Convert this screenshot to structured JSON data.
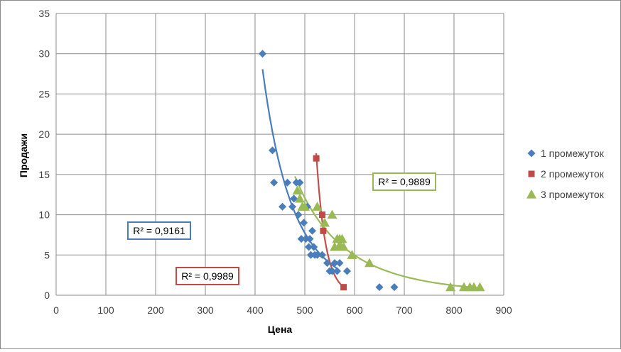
{
  "chart_data": {
    "type": "scatter",
    "title": "",
    "xlabel": "Цена",
    "ylabel": "Продажи",
    "xlim": [
      0,
      900
    ],
    "ylim": [
      0,
      35
    ],
    "xticks": [
      "0",
      "100",
      "200",
      "300",
      "400",
      "500",
      "600",
      "700",
      "800",
      "900"
    ],
    "yticks": [
      "0",
      "5",
      "10",
      "15",
      "20",
      "25",
      "30",
      "35"
    ],
    "grid": true,
    "legend_position": "right",
    "series": [
      {
        "name": "1 промежуток",
        "marker": "diamond",
        "color": "#4a7ebb",
        "trend_color": "#4a7ebb",
        "trend_range": [
          415,
          565
        ],
        "r2_label": "R² = 0,9161",
        "points": [
          [
            415,
            30
          ],
          [
            435,
            18
          ],
          [
            438,
            14
          ],
          [
            455,
            11
          ],
          [
            465,
            14
          ],
          [
            475,
            11
          ],
          [
            478,
            12
          ],
          [
            483,
            14
          ],
          [
            487,
            10
          ],
          [
            490,
            14
          ],
          [
            493,
            7
          ],
          [
            498,
            9
          ],
          [
            502,
            7
          ],
          [
            505,
            11
          ],
          [
            508,
            6
          ],
          [
            510,
            7
          ],
          [
            512,
            5
          ],
          [
            515,
            8
          ],
          [
            518,
            6
          ],
          [
            520,
            5
          ],
          [
            525,
            5
          ],
          [
            535,
            5
          ],
          [
            545,
            4
          ],
          [
            550,
            3
          ],
          [
            555,
            3
          ],
          [
            560,
            4
          ],
          [
            565,
            3
          ],
          [
            570,
            4
          ],
          [
            585,
            3
          ],
          [
            650,
            1
          ],
          [
            680,
            1
          ]
        ]
      },
      {
        "name": "2 промежуток",
        "marker": "square",
        "color": "#be4b48",
        "trend_color": "#c0504d",
        "trend_range": [
          523,
          578
        ],
        "r2_label": "R² = 0,9989",
        "points": [
          [
            523,
            17
          ],
          [
            535,
            10
          ],
          [
            537,
            8
          ],
          [
            578,
            1
          ]
        ]
      },
      {
        "name": "3 промежуток",
        "marker": "triangle",
        "color": "#98b954",
        "trend_color": "#9bbb59",
        "trend_range": [
          480,
          855
        ],
        "r2_label": "R² = 0,9889",
        "points": [
          [
            485,
            13
          ],
          [
            490,
            12
          ],
          [
            495,
            11
          ],
          [
            500,
            11
          ],
          [
            525,
            11
          ],
          [
            540,
            9
          ],
          [
            555,
            10
          ],
          [
            560,
            6
          ],
          [
            565,
            7
          ],
          [
            568,
            6
          ],
          [
            570,
            7
          ],
          [
            573,
            6
          ],
          [
            575,
            7
          ],
          [
            578,
            6
          ],
          [
            595,
            5
          ],
          [
            630,
            4
          ],
          [
            793,
            1
          ],
          [
            820,
            1
          ],
          [
            832,
            1
          ],
          [
            840,
            1
          ],
          [
            852,
            1
          ]
        ]
      }
    ]
  }
}
